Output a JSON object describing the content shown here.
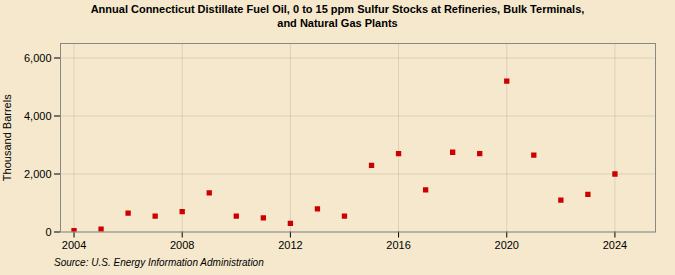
{
  "chart_data": {
    "type": "scatter",
    "title": "Annual Connecticut Distillate Fuel Oil, 0 to 15 ppm Sulfur Stocks at Refineries, Bulk Terminals,\nand Natural Gas Plants",
    "ylabel": "Thousand Barrels",
    "source": "Source: U.S. Energy Information Administration",
    "x": [
      2004,
      2005,
      2006,
      2007,
      2008,
      2009,
      2010,
      2011,
      2012,
      2013,
      2014,
      2015,
      2016,
      2017,
      2018,
      2019,
      2020,
      2021,
      2022,
      2023,
      2024
    ],
    "values": [
      50,
      100,
      650,
      550,
      700,
      1350,
      550,
      490,
      300,
      800,
      550,
      2300,
      2700,
      1450,
      2750,
      2700,
      5200,
      2650,
      1100,
      1300,
      2000
    ],
    "color": "#cc0000",
    "marker": "square",
    "xlim": [
      2003.5,
      2025.5
    ],
    "xticks": [
      2004,
      2008,
      2012,
      2016,
      2020,
      2024
    ],
    "ylim": [
      0,
      6500
    ],
    "yticks": [
      0,
      {
        "value": 2000,
        "label": "2,000"
      },
      {
        "value": 4000,
        "label": "4,000"
      },
      {
        "value": 6000,
        "label": "6,000"
      }
    ],
    "grid": true
  }
}
